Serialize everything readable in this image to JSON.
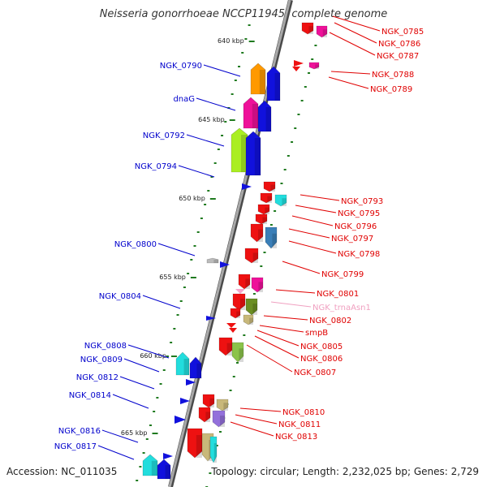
{
  "title": "Neisseria gonorrhoeae NCCP11945, complete genome",
  "footer": {
    "accession": "Accession: NC_011035",
    "summary": "Topology: circular; Length: 2,232,025 bp; Genes: 2,729"
  },
  "colors": {
    "backbone": "#808080",
    "tick": "#1f7a1f",
    "left_label": "#0000cc",
    "right_label": "#e00000",
    "trna_label": "#f0a0c0"
  },
  "kbp_marks": [
    "640 kbp",
    "645 kbp",
    "650 kbp",
    "655 kbp",
    "660 kbp",
    "665 kbp"
  ],
  "left_genes": [
    "NGK_0790",
    "dnaG",
    "NGK_0792",
    "NGK_0794",
    "NGK_0800",
    "NGK_0804",
    "NGK_0808",
    "NGK_0809",
    "NGK_0812",
    "NGK_0814",
    "NGK_0816",
    "NGK_0817"
  ],
  "right_genes": [
    "NGK_0785",
    "NGK_0786",
    "NGK_0787",
    "NGK_0788",
    "NGK_0789",
    "NGK_0793",
    "NGK_0795",
    "NGK_0796",
    "NGK_0797",
    "NGK_0798",
    "NGK_0799",
    "NGK_0801",
    "NGK_trnaAsn1",
    "NGK_0802",
    "smpB",
    "NGK_0805",
    "NGK_0806",
    "NGK_0807",
    "NGK_0810",
    "NGK_0811",
    "NGK_0813"
  ]
}
